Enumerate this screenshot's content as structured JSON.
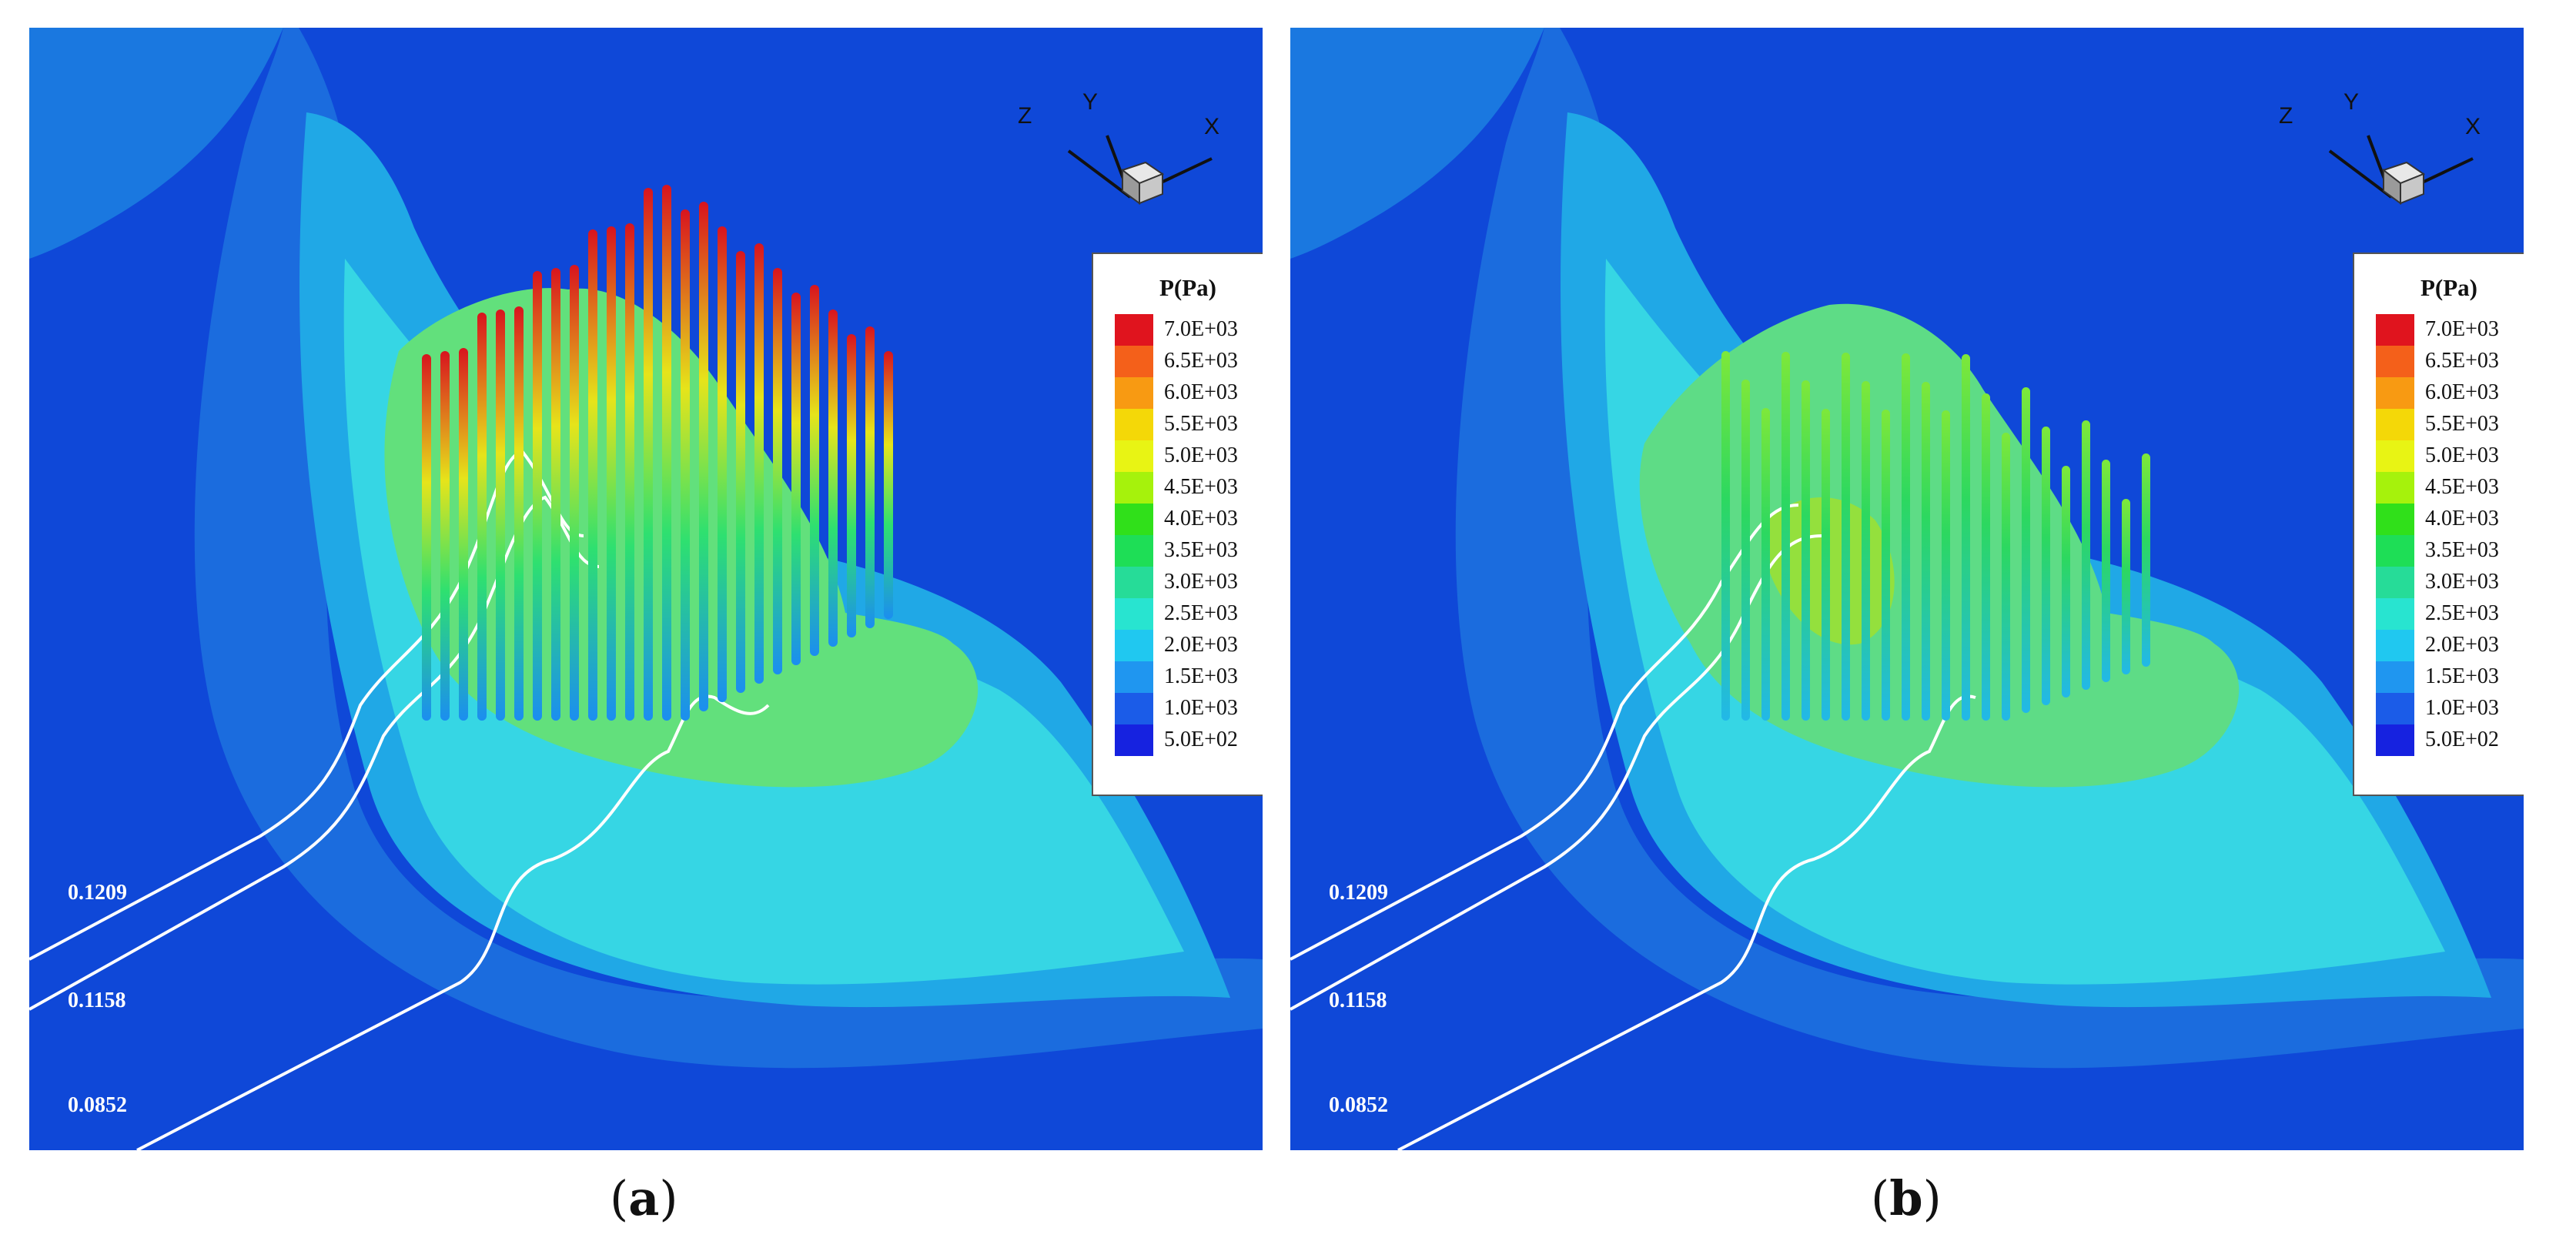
{
  "panels": [
    {
      "id": "a",
      "caption_open": "(",
      "caption_letter": "a",
      "caption_close": ")",
      "legend_title": "P(Pa)",
      "axes": {
        "z": "Z",
        "y": "Y",
        "x": "X"
      },
      "levels": [
        "0.1209",
        "0.1158",
        "0.0852"
      ]
    },
    {
      "id": "b",
      "caption_open": "(",
      "caption_letter": "b",
      "caption_close": ")",
      "legend_title": "P(Pa)",
      "axes": {
        "z": "Z",
        "y": "Y",
        "x": "X"
      },
      "levels": [
        "0.1209",
        "0.1158",
        "0.0852"
      ]
    }
  ],
  "legend": [
    {
      "label": "7.0E+03",
      "color": "#e0141e"
    },
    {
      "label": "6.5E+03",
      "color": "#f4601a"
    },
    {
      "label": "6.0E+03",
      "color": "#f89a12"
    },
    {
      "label": "5.5E+03",
      "color": "#f4d808"
    },
    {
      "label": "5.0E+03",
      "color": "#e8f414"
    },
    {
      "label": "4.5E+03",
      "color": "#a6f20c"
    },
    {
      "label": "4.0E+03",
      "color": "#30e01a"
    },
    {
      "label": "3.5E+03",
      "color": "#1ede56"
    },
    {
      "label": "3.0E+03",
      "color": "#26dc98"
    },
    {
      "label": "2.5E+03",
      "color": "#28e4d0"
    },
    {
      "label": "2.0E+03",
      "color": "#20c8f0"
    },
    {
      "label": "1.5E+03",
      "color": "#1f96f0"
    },
    {
      "label": "1.0E+03",
      "color": "#1b5ce8"
    },
    {
      "label": "5.0E+02",
      "color": "#1622e0"
    }
  ],
  "colors": {
    "background_field": "#0f48d8",
    "outer_band": "#1b6cde",
    "mid_band": "#20a8e6",
    "inner_band": "#36d6e4",
    "core": "#62e07c",
    "contour_line": "#ffffff"
  }
}
